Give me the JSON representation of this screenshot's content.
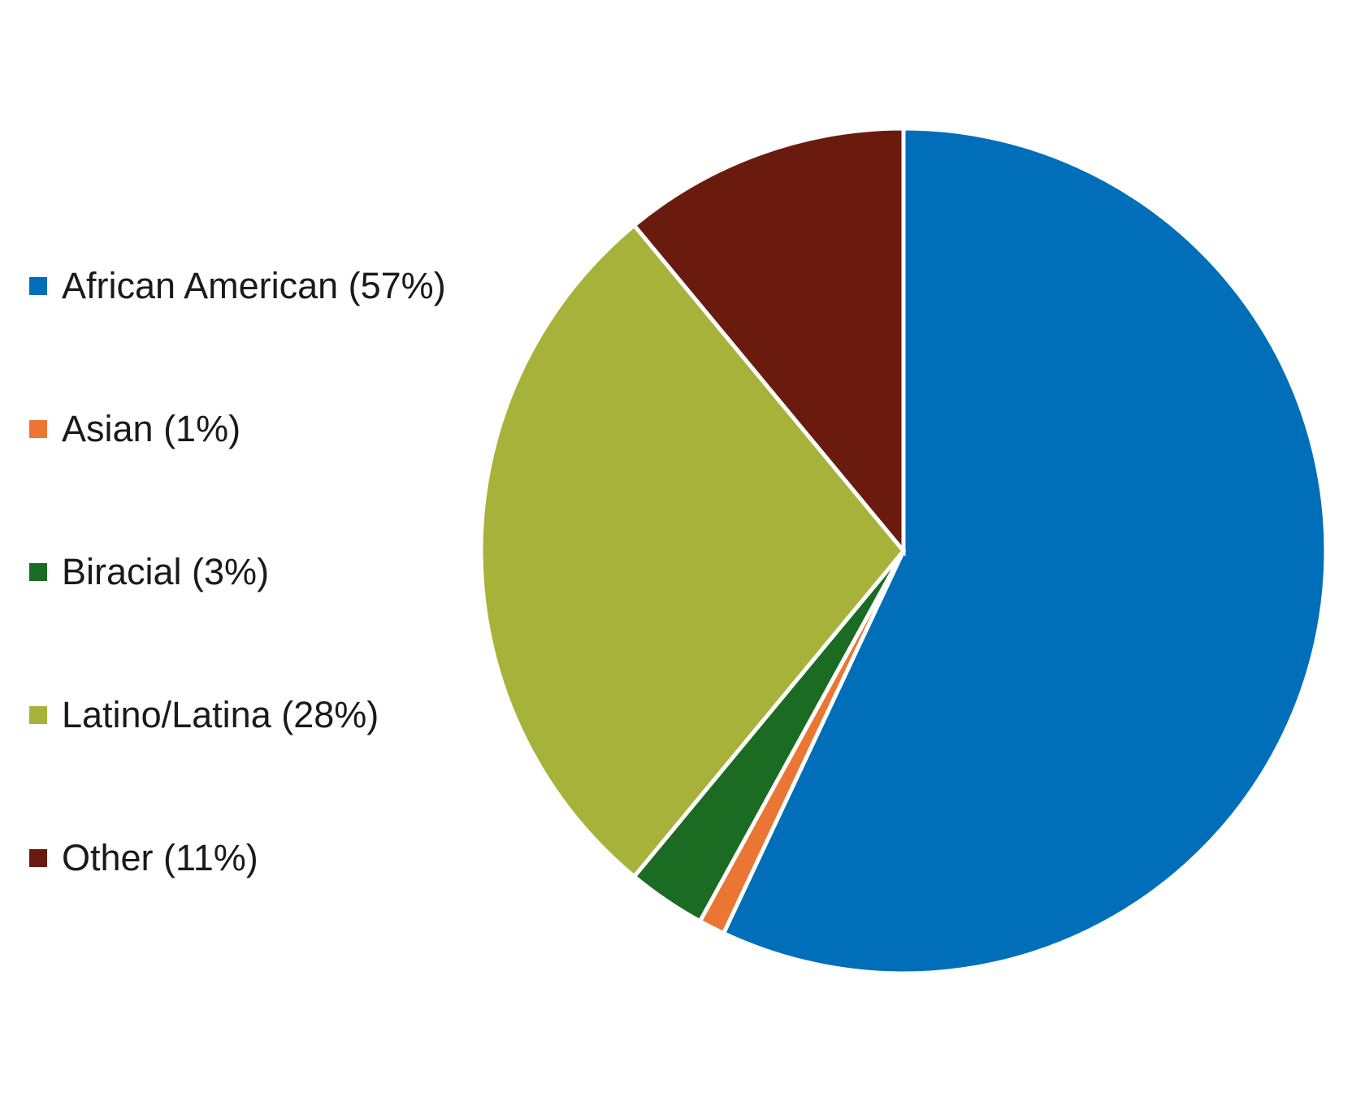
{
  "chart_data": {
    "type": "pie",
    "title": "",
    "legend": "left",
    "start_angle_deg": 0,
    "direction": "clockwise",
    "slices": [
      {
        "label": "African American (57%)",
        "category": "African American",
        "value": 57,
        "color": "#006EB8"
      },
      {
        "label": "Asian (1%)",
        "category": "Asian",
        "value": 1,
        "color": "#EB7533"
      },
      {
        "label": "Biracial (3%)",
        "category": "Biracial",
        "value": 3,
        "color": "#1C6B23"
      },
      {
        "label": "Latino/Latina (28%)",
        "category": "Latino/Latina",
        "value": 28,
        "color": "#A7B23A"
      },
      {
        "label": "Other (11%)",
        "category": "Other",
        "value": 11,
        "color": "#6B1B0D"
      }
    ]
  }
}
